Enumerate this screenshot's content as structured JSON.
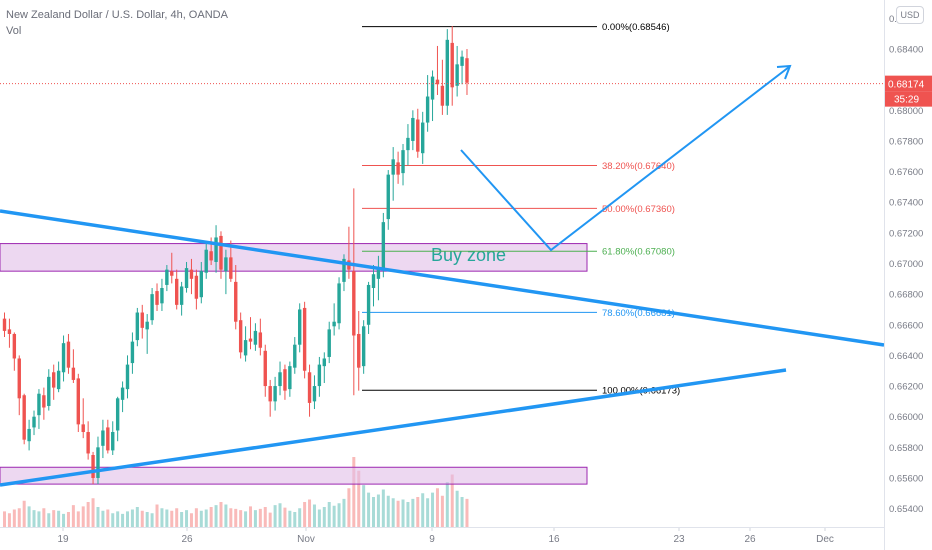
{
  "header": {
    "symbol_line": "New Zealand Dollar / U.S. Dollar, 4h, OANDA",
    "volume_label": "Vol",
    "currency_badge": "USD"
  },
  "price_badge": {
    "price": "0.68174",
    "countdown": "35:29",
    "color": "#ef5350"
  },
  "colors": {
    "up": "#26a69a",
    "down": "#ef5350",
    "trend": "#2196f3",
    "zone_fill": "#e1bee7",
    "zone_border": "#9c27b0"
  },
  "chart_data": {
    "type": "candlestick",
    "instrument": "NZD/USD",
    "timeframe": "4h",
    "y_axis": {
      "ticks": [
        "0.68600",
        "0.68400",
        "0.68200",
        "0.68000",
        "0.67800",
        "0.67600",
        "0.67400",
        "0.67200",
        "0.67000",
        "0.66800",
        "0.66600",
        "0.66400",
        "0.66200",
        "0.66000",
        "0.65800",
        "0.65600",
        "0.65400"
      ],
      "range": [
        0.6528,
        0.6872
      ]
    },
    "x_axis": {
      "ticks": [
        "19",
        "26",
        "Nov",
        "9",
        "16",
        "23",
        "26",
        "Dec"
      ]
    },
    "fibonacci": [
      {
        "level": "0.00%",
        "price": "0.68546",
        "label": "0.00%(0.68546)",
        "color": "#000000"
      },
      {
        "level": "38.20%",
        "price": "0.67640",
        "label": "38.20%(0.67640)",
        "color": "#ef5350"
      },
      {
        "level": "50.00%",
        "price": "0.67360",
        "label": "50.00%(0.67360)",
        "color": "#ef5350"
      },
      {
        "level": "61.80%",
        "price": "0.67080",
        "label": "61.80%(0.67080)",
        "color": "#4caf50"
      },
      {
        "level": "78.60%",
        "price": "0.66681",
        "label": "78.60%(0.66681)",
        "color": "#2196f3"
      },
      {
        "level": "100.00%",
        "price": "0.66173",
        "label": "100.00%(0.66173)",
        "color": "#000000"
      }
    ],
    "zones": [
      {
        "name": "Buy zone",
        "top": 0.6713,
        "bottom": 0.6695
      },
      {
        "name": "",
        "top": 0.6567,
        "bottom": 0.6556
      }
    ],
    "annotation": "Buy zone",
    "last_price": 0.68174,
    "candles": [
      [
        0.6664,
        0.6668,
        0.6652,
        0.6656
      ],
      [
        0.6657,
        0.6664,
        0.6645,
        0.6654
      ],
      [
        0.6654,
        0.6655,
        0.663,
        0.6638
      ],
      [
        0.6638,
        0.664,
        0.6601,
        0.6612
      ],
      [
        0.6614,
        0.6615,
        0.6582,
        0.6585
      ],
      [
        0.6584,
        0.6598,
        0.6578,
        0.6592
      ],
      [
        0.6593,
        0.6604,
        0.6588,
        0.66
      ],
      [
        0.6601,
        0.6618,
        0.6592,
        0.6615
      ],
      [
        0.6614,
        0.6619,
        0.6598,
        0.6606
      ],
      [
        0.6607,
        0.6631,
        0.6604,
        0.6626
      ],
      [
        0.6629,
        0.6634,
        0.6611,
        0.6619
      ],
      [
        0.6618,
        0.6636,
        0.6616,
        0.663
      ],
      [
        0.6629,
        0.6653,
        0.6623,
        0.6648
      ],
      [
        0.6649,
        0.6654,
        0.6628,
        0.6632
      ],
      [
        0.6632,
        0.6644,
        0.6622,
        0.6624
      ],
      [
        0.6625,
        0.6628,
        0.659,
        0.6595
      ],
      [
        0.6595,
        0.6612,
        0.6586,
        0.659
      ],
      [
        0.659,
        0.6597,
        0.6572,
        0.6576
      ],
      [
        0.6575,
        0.6577,
        0.6556,
        0.656
      ],
      [
        0.656,
        0.6587,
        0.6556,
        0.658
      ],
      [
        0.6581,
        0.6598,
        0.6573,
        0.6591
      ],
      [
        0.6593,
        0.6598,
        0.6576,
        0.6578
      ],
      [
        0.6578,
        0.6597,
        0.6575,
        0.659
      ],
      [
        0.6591,
        0.6613,
        0.6584,
        0.6612
      ],
      [
        0.6611,
        0.6623,
        0.6603,
        0.6619
      ],
      [
        0.6618,
        0.664,
        0.6612,
        0.6634
      ],
      [
        0.6635,
        0.6655,
        0.6628,
        0.6649
      ],
      [
        0.665,
        0.6671,
        0.6646,
        0.6668
      ],
      [
        0.6668,
        0.6673,
        0.6651,
        0.6658
      ],
      [
        0.6657,
        0.6667,
        0.6641,
        0.6662
      ],
      [
        0.6663,
        0.6684,
        0.666,
        0.668
      ],
      [
        0.6682,
        0.6687,
        0.6669,
        0.6673
      ],
      [
        0.6674,
        0.669,
        0.6669,
        0.6684
      ],
      [
        0.6686,
        0.6699,
        0.6682,
        0.6696
      ],
      [
        0.6695,
        0.6707,
        0.6687,
        0.6692
      ],
      [
        0.669,
        0.6696,
        0.667,
        0.6673
      ],
      [
        0.6673,
        0.6688,
        0.6666,
        0.6685
      ],
      [
        0.6684,
        0.6701,
        0.6681,
        0.6697
      ],
      [
        0.6696,
        0.6703,
        0.668,
        0.669
      ],
      [
        0.6692,
        0.6696,
        0.667,
        0.6677
      ],
      [
        0.6678,
        0.6701,
        0.6674,
        0.6695
      ],
      [
        0.6694,
        0.6713,
        0.669,
        0.6709
      ],
      [
        0.6708,
        0.6717,
        0.6699,
        0.6702
      ],
      [
        0.6701,
        0.6725,
        0.6694,
        0.6717
      ],
      [
        0.6718,
        0.6721,
        0.669,
        0.6696
      ],
      [
        0.6695,
        0.6709,
        0.668,
        0.6704
      ],
      [
        0.6704,
        0.6715,
        0.6688,
        0.669
      ],
      [
        0.6688,
        0.6699,
        0.6657,
        0.6662
      ],
      [
        0.6663,
        0.6668,
        0.6638,
        0.6642
      ],
      [
        0.664,
        0.6659,
        0.6636,
        0.665
      ],
      [
        0.6651,
        0.6665,
        0.6644,
        0.6649
      ],
      [
        0.6647,
        0.6661,
        0.6643,
        0.6656
      ],
      [
        0.6655,
        0.6664,
        0.664,
        0.6645
      ],
      [
        0.6643,
        0.6647,
        0.6613,
        0.662
      ],
      [
        0.662,
        0.6624,
        0.66,
        0.661
      ],
      [
        0.661,
        0.6626,
        0.6604,
        0.662
      ],
      [
        0.662,
        0.6636,
        0.6614,
        0.6629
      ],
      [
        0.6631,
        0.6634,
        0.6611,
        0.6617
      ],
      [
        0.6618,
        0.6636,
        0.6613,
        0.6633
      ],
      [
        0.6632,
        0.6652,
        0.6628,
        0.6647
      ],
      [
        0.6647,
        0.6674,
        0.6642,
        0.667
      ],
      [
        0.6671,
        0.6675,
        0.6625,
        0.663
      ],
      [
        0.6629,
        0.6634,
        0.66,
        0.6609
      ],
      [
        0.661,
        0.6627,
        0.6605,
        0.662
      ],
      [
        0.662,
        0.6639,
        0.6613,
        0.6634
      ],
      [
        0.6633,
        0.6642,
        0.6622,
        0.6638
      ],
      [
        0.6639,
        0.6662,
        0.6635,
        0.6657
      ],
      [
        0.6659,
        0.6674,
        0.6653,
        0.6662
      ],
      [
        0.6661,
        0.6691,
        0.6657,
        0.6687
      ],
      [
        0.6688,
        0.6706,
        0.6682,
        0.6703
      ],
      [
        0.6702,
        0.6724,
        0.669,
        0.6696
      ],
      [
        0.6695,
        0.6749,
        0.6614,
        0.6653
      ],
      [
        0.6654,
        0.6669,
        0.6617,
        0.6632
      ],
      [
        0.6633,
        0.6663,
        0.6628,
        0.6659
      ],
      [
        0.666,
        0.6688,
        0.6654,
        0.6686
      ],
      [
        0.6684,
        0.6699,
        0.6672,
        0.6693
      ],
      [
        0.669,
        0.6705,
        0.6676,
        0.6696
      ],
      [
        0.6696,
        0.6733,
        0.6691,
        0.6727
      ],
      [
        0.6729,
        0.6761,
        0.6722,
        0.6758
      ],
      [
        0.6758,
        0.6776,
        0.6741,
        0.6768
      ],
      [
        0.6766,
        0.6773,
        0.6752,
        0.6758
      ],
      [
        0.6759,
        0.6778,
        0.6751,
        0.6774
      ],
      [
        0.6774,
        0.6791,
        0.6764,
        0.6782
      ],
      [
        0.678,
        0.68,
        0.6774,
        0.6795
      ],
      [
        0.6794,
        0.6801,
        0.6769,
        0.6773
      ],
      [
        0.6772,
        0.6799,
        0.6765,
        0.6792
      ],
      [
        0.6792,
        0.6823,
        0.6786,
        0.6809
      ],
      [
        0.6807,
        0.6826,
        0.6793,
        0.6822
      ],
      [
        0.682,
        0.6842,
        0.681,
        0.6817
      ],
      [
        0.6816,
        0.6833,
        0.6797,
        0.6803
      ],
      [
        0.6803,
        0.6853,
        0.6797,
        0.6846
      ],
      [
        0.6844,
        0.6855,
        0.6803,
        0.6815
      ],
      [
        0.6816,
        0.6842,
        0.6809,
        0.683
      ],
      [
        0.6829,
        0.6839,
        0.6817,
        0.6835
      ],
      [
        0.6834,
        0.684,
        0.681,
        0.6818
      ]
    ],
    "volume": [
      25,
      22,
      28,
      30,
      42,
      33,
      27,
      25,
      30,
      22,
      27,
      26,
      21,
      24,
      35,
      25,
      33,
      40,
      46,
      32,
      26,
      28,
      22,
      25,
      21,
      25,
      28,
      32,
      26,
      24,
      22,
      36,
      30,
      28,
      26,
      30,
      24,
      27,
      22,
      30,
      26,
      28,
      32,
      35,
      40,
      36,
      30,
      29,
      27,
      25,
      33,
      27,
      29,
      32,
      23,
      35,
      38,
      31,
      26,
      24,
      30,
      40,
      44,
      36,
      28,
      32,
      40,
      34,
      38,
      45,
      62,
      112,
      90,
      67,
      55,
      48,
      52,
      60,
      50,
      46,
      42,
      44,
      40,
      45,
      48,
      54,
      46,
      55,
      62,
      50,
      72,
      84,
      58,
      48,
      45
    ]
  }
}
